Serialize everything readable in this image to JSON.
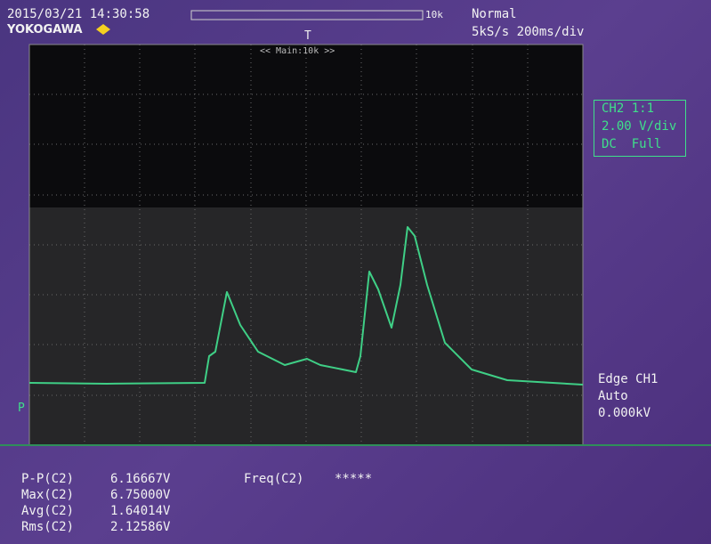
{
  "header": {
    "timestamp": "2015/03/21 14:30:58",
    "brand": "YOKOGAWA",
    "memory": "10k",
    "mode": "Normal",
    "timebase": "5kS/s 200ms/div",
    "zoom": "<< Main:10k >>"
  },
  "channel": [
    "CH2 1:1",
    "2.00 V/div",
    "DC  Full"
  ],
  "trigger": [
    "Edge CH1",
    "Auto",
    "0.000kV"
  ],
  "measurements": [
    {
      "name": "P-P(C2)",
      "value": "6.16667V"
    },
    {
      "name": "Max(C2)",
      "value": "6.75000V"
    },
    {
      "name": "Avg(C2)",
      "value": "1.64014V"
    },
    {
      "name": "Rms(C2)",
      "value": "2.12586V"
    },
    {
      "name": "Freq(C2)",
      "value": "*****"
    }
  ]
}
